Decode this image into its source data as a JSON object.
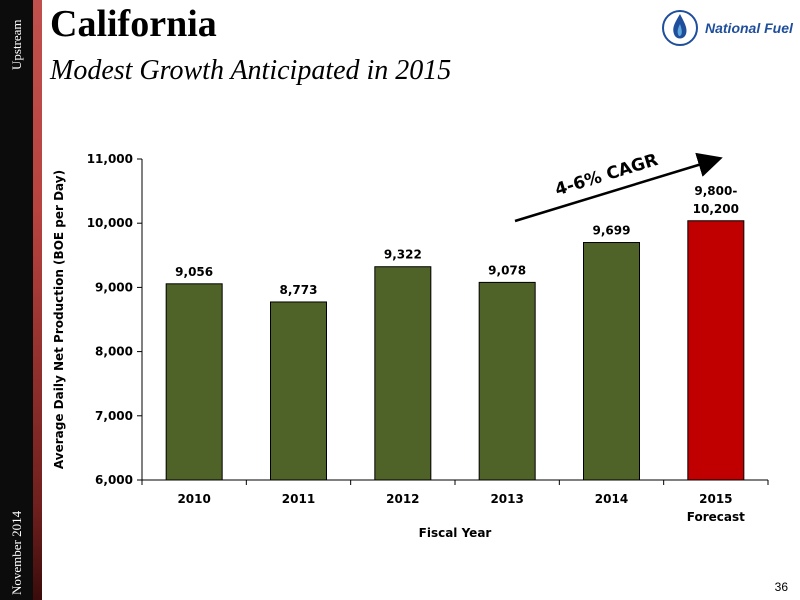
{
  "sidebar": {
    "top_text": "Upstream",
    "bottom_text": "November 2014"
  },
  "header": {
    "title": "California",
    "subtitle": "Modest Growth Anticipated in 2015"
  },
  "logo": {
    "text": "National Fuel",
    "icon": "flame-icon",
    "color": "#1f4e9c"
  },
  "page_number": "36",
  "annotation": {
    "text": "4-6% CAGR"
  },
  "colors": {
    "bar": "#4f6228",
    "forecast_bar": "#c00000"
  },
  "chart_data": {
    "type": "bar",
    "categories": [
      "2010",
      "2011",
      "2012",
      "2013",
      "2014",
      "2015 Forecast"
    ],
    "category_lines": [
      [
        "2010"
      ],
      [
        "2011"
      ],
      [
        "2012"
      ],
      [
        "2013"
      ],
      [
        "2014"
      ],
      [
        "2015",
        "Forecast"
      ]
    ],
    "values": [
      9056,
      8773,
      9322,
      9078,
      9699,
      10038
    ],
    "data_labels": [
      [
        "9,056"
      ],
      [
        "8,773"
      ],
      [
        "9,322"
      ],
      [
        "9,078"
      ],
      [
        "9,699"
      ],
      [
        "9,800-",
        "10,200"
      ]
    ],
    "xlabel": "Fiscal Year",
    "ylabel": "Average Daily Net Production (BOE per Day)",
    "ylim": [
      6000,
      11000
    ],
    "yticks": [
      6000,
      7000,
      8000,
      9000,
      10000,
      11000
    ],
    "ytick_labels": [
      "6,000",
      "7,000",
      "8,000",
      "9,000",
      "10,000",
      "11,000"
    ],
    "grid": false
  }
}
